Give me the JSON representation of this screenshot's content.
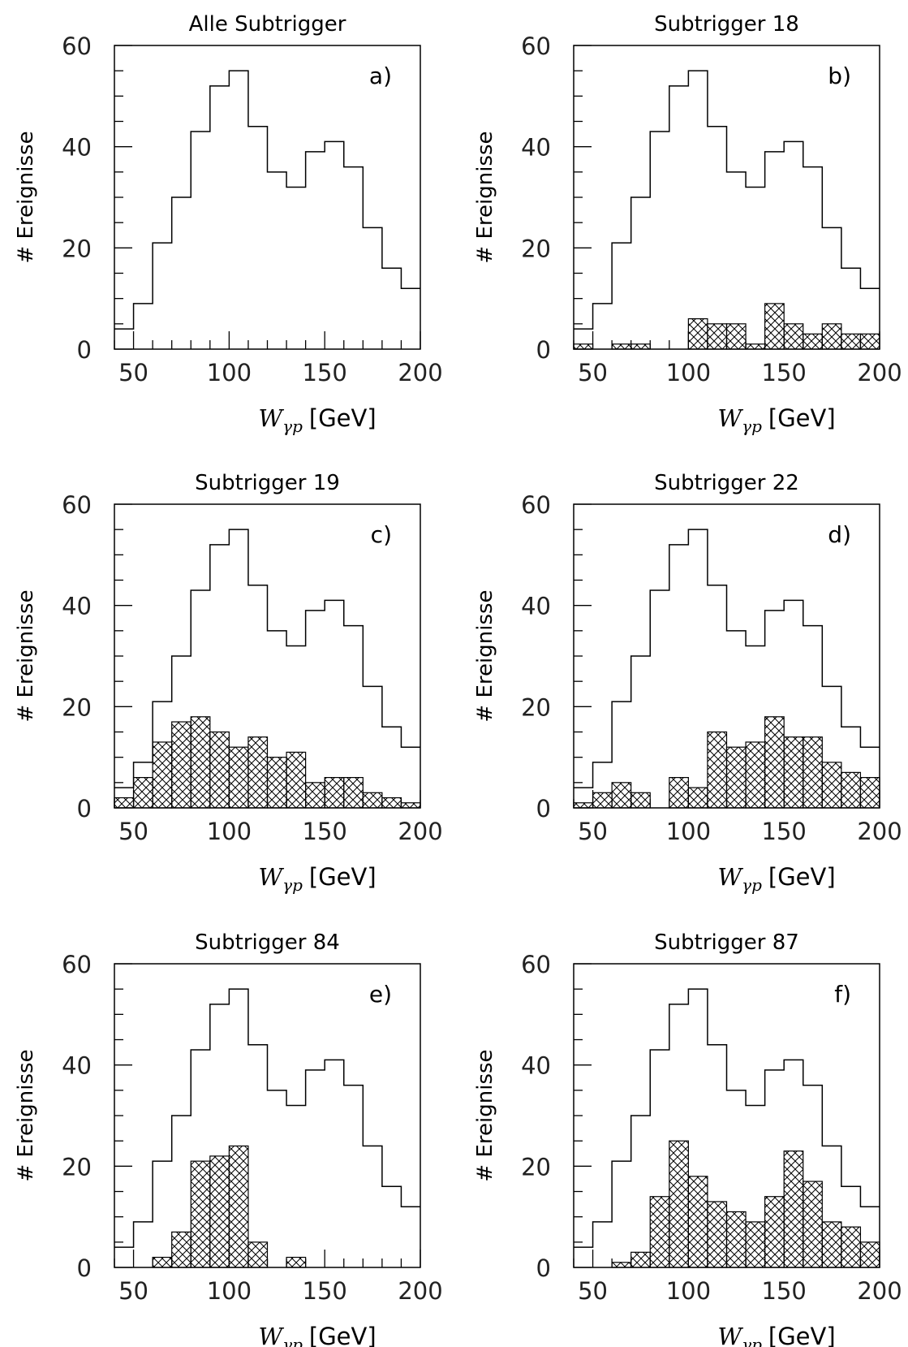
{
  "figure": {
    "x_unit_label": "[GeV]",
    "x_symbol": "W",
    "x_subscript": "γp",
    "y_label": "# Ereignisse"
  },
  "chart_data": [
    {
      "type": "bar",
      "title": "Alle Subtrigger",
      "panel_label": "a)",
      "xlabel": "W_γp [GeV]",
      "ylabel": "# Ereignisse",
      "xlim": [
        40,
        200
      ],
      "ylim": [
        0,
        60
      ],
      "bin_edges": [
        40,
        50,
        60,
        70,
        80,
        90,
        100,
        110,
        120,
        130,
        140,
        150,
        160,
        170,
        180,
        190,
        200
      ],
      "xticks": [
        50,
        100,
        150,
        200
      ],
      "yticks": [
        0,
        20,
        40,
        60
      ],
      "series": [
        {
          "name": "",
          "style": "outline",
          "values": [
            4,
            9,
            21,
            30,
            43,
            52,
            55,
            44,
            35,
            32,
            39,
            41,
            36,
            24,
            16,
            12
          ]
        }
      ]
    },
    {
      "type": "bar",
      "title": "Subtrigger 18",
      "panel_label": "b)",
      "xlabel": "W_γp [GeV]",
      "ylabel": "# Ereignisse",
      "xlim": [
        40,
        200
      ],
      "ylim": [
        0,
        60
      ],
      "bin_edges": [
        40,
        50,
        60,
        70,
        80,
        90,
        100,
        110,
        120,
        130,
        140,
        150,
        160,
        170,
        180,
        190,
        200
      ],
      "xticks": [
        50,
        100,
        150,
        200
      ],
      "yticks": [
        0,
        20,
        40,
        60
      ],
      "series": [
        {
          "name": "",
          "style": "outline",
          "values": [
            4,
            9,
            21,
            30,
            43,
            52,
            55,
            44,
            35,
            32,
            39,
            41,
            36,
            24,
            16,
            12
          ]
        },
        {
          "name": "",
          "style": "hatched",
          "values": [
            1,
            0,
            1,
            1,
            0,
            0,
            6,
            5,
            5,
            1,
            9,
            5,
            3,
            5,
            3,
            3
          ]
        }
      ]
    },
    {
      "type": "bar",
      "title": "Subtrigger 19",
      "panel_label": "c)",
      "xlabel": "W_γp [GeV]",
      "ylabel": "# Ereignisse",
      "xlim": [
        40,
        200
      ],
      "ylim": [
        0,
        60
      ],
      "bin_edges": [
        40,
        50,
        60,
        70,
        80,
        90,
        100,
        110,
        120,
        130,
        140,
        150,
        160,
        170,
        180,
        190,
        200
      ],
      "xticks": [
        50,
        100,
        150,
        200
      ],
      "yticks": [
        0,
        20,
        40,
        60
      ],
      "series": [
        {
          "name": "",
          "style": "outline",
          "values": [
            4,
            9,
            21,
            30,
            43,
            52,
            55,
            44,
            35,
            32,
            39,
            41,
            36,
            24,
            16,
            12
          ]
        },
        {
          "name": "",
          "style": "hatched",
          "values": [
            2,
            6,
            13,
            17,
            18,
            15,
            12,
            14,
            10,
            11,
            5,
            6,
            6,
            3,
            2,
            1
          ]
        }
      ]
    },
    {
      "type": "bar",
      "title": "Subtrigger 22",
      "panel_label": "d)",
      "xlabel": "W_γp [GeV]",
      "ylabel": "# Ereignisse",
      "xlim": [
        40,
        200
      ],
      "ylim": [
        0,
        60
      ],
      "bin_edges": [
        40,
        50,
        60,
        70,
        80,
        90,
        100,
        110,
        120,
        130,
        140,
        150,
        160,
        170,
        180,
        190,
        200
      ],
      "xticks": [
        50,
        100,
        150,
        200
      ],
      "yticks": [
        0,
        20,
        40,
        60
      ],
      "series": [
        {
          "name": "",
          "style": "outline",
          "values": [
            4,
            9,
            21,
            30,
            43,
            52,
            55,
            44,
            35,
            32,
            39,
            41,
            36,
            24,
            16,
            12
          ]
        },
        {
          "name": "",
          "style": "hatched",
          "values": [
            1,
            3,
            5,
            3,
            0,
            6,
            4,
            15,
            12,
            13,
            18,
            14,
            14,
            9,
            7,
            6
          ]
        }
      ]
    },
    {
      "type": "bar",
      "title": "Subtrigger 84",
      "panel_label": "e)",
      "xlabel": "W_γp [GeV]",
      "ylabel": "# Ereignisse",
      "xlim": [
        40,
        200
      ],
      "ylim": [
        0,
        60
      ],
      "bin_edges": [
        40,
        50,
        60,
        70,
        80,
        90,
        100,
        110,
        120,
        130,
        140,
        150,
        160,
        170,
        180,
        190,
        200
      ],
      "xticks": [
        50,
        100,
        150,
        200
      ],
      "yticks": [
        0,
        20,
        40,
        60
      ],
      "series": [
        {
          "name": "",
          "style": "outline",
          "values": [
            4,
            9,
            21,
            30,
            43,
            52,
            55,
            44,
            35,
            32,
            39,
            41,
            36,
            24,
            16,
            12
          ]
        },
        {
          "name": "",
          "style": "hatched",
          "values": [
            0,
            0,
            2,
            7,
            21,
            22,
            24,
            5,
            0,
            2,
            0,
            0,
            0,
            0,
            0,
            0
          ]
        }
      ]
    },
    {
      "type": "bar",
      "title": "Subtrigger 87",
      "panel_label": "f)",
      "xlabel": "W_γp [GeV]",
      "ylabel": "# Ereignisse",
      "xlim": [
        40,
        200
      ],
      "ylim": [
        0,
        60
      ],
      "bin_edges": [
        40,
        50,
        60,
        70,
        80,
        90,
        100,
        110,
        120,
        130,
        140,
        150,
        160,
        170,
        180,
        190,
        200
      ],
      "xticks": [
        50,
        100,
        150,
        200
      ],
      "yticks": [
        0,
        20,
        40,
        60
      ],
      "series": [
        {
          "name": "",
          "style": "outline",
          "values": [
            4,
            9,
            21,
            30,
            43,
            52,
            55,
            44,
            35,
            32,
            39,
            41,
            36,
            24,
            16,
            12
          ]
        },
        {
          "name": "",
          "style": "hatched",
          "values": [
            0,
            0,
            1,
            3,
            14,
            25,
            18,
            13,
            11,
            9,
            14,
            23,
            17,
            9,
            8,
            5
          ]
        }
      ]
    }
  ]
}
